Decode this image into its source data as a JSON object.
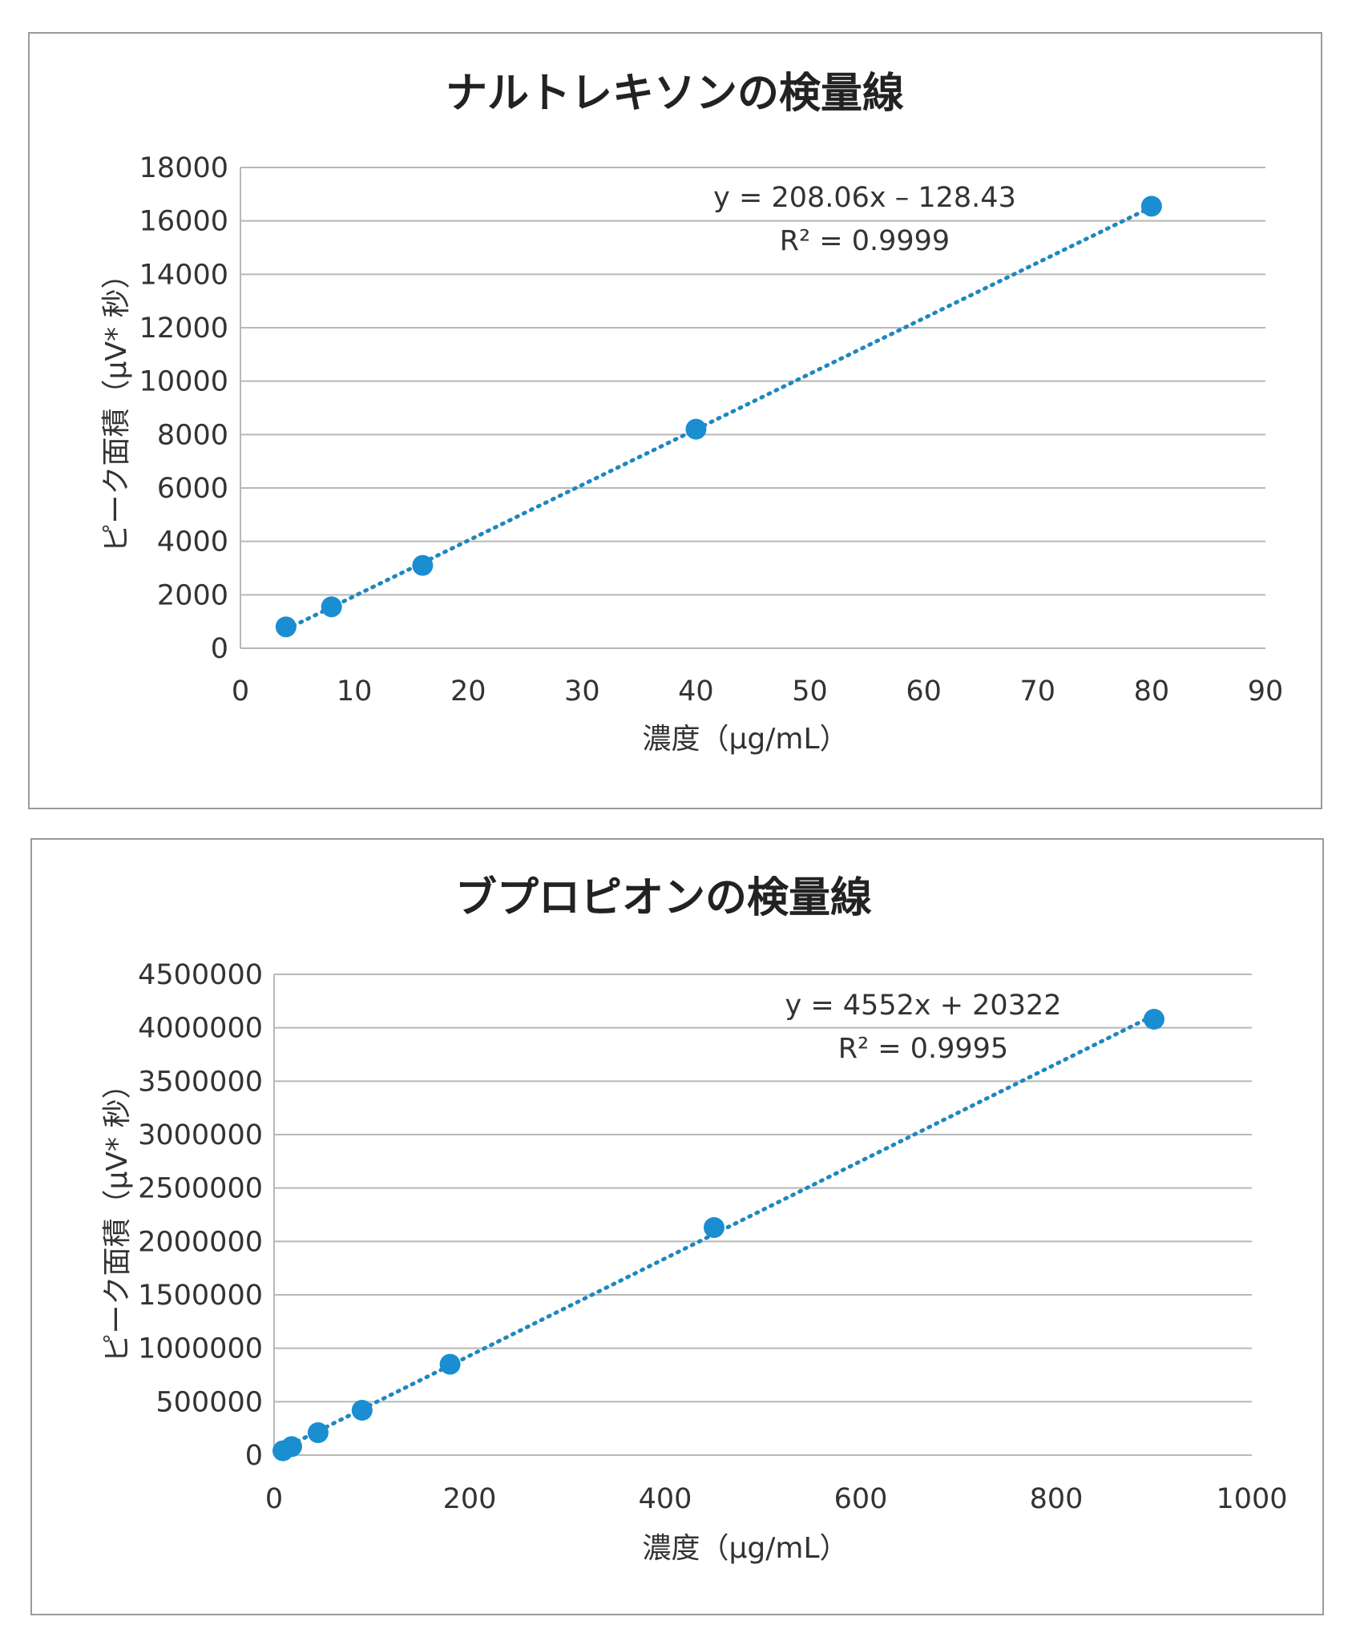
{
  "chart_data": [
    {
      "type": "scatter",
      "title": "ナルトレキソンの検量線",
      "xlabel": "濃度（μg/mL）",
      "ylabel": "ピーク面積（μV* 秒）",
      "xlim": [
        0,
        90
      ],
      "ylim": [
        0,
        18000
      ],
      "x_ticks": [
        "0",
        "10",
        "20",
        "30",
        "40",
        "50",
        "60",
        "70",
        "80",
        "90"
      ],
      "y_ticks": [
        "0",
        "2000",
        "4000",
        "6000",
        "8000",
        "10000",
        "12000",
        "14000",
        "16000",
        "18000"
      ],
      "grid": true,
      "x": [
        4,
        8,
        16,
        40,
        80
      ],
      "y": [
        800,
        1550,
        3100,
        8200,
        16550
      ],
      "trendline": {
        "slope": 208.06,
        "intercept": -128.43,
        "x_range": [
          4,
          80
        ]
      },
      "equation": "y = 208.06x – 128.43",
      "r_squared": "R² = 0.9999",
      "color": "#1a8ed1"
    },
    {
      "type": "scatter",
      "title": "ブプロピオンの検量線",
      "xlabel": "濃度（μg/mL）",
      "ylabel": "ピーク面積（μV* 秒）",
      "xlim": [
        0,
        1000
      ],
      "ylim": [
        0,
        4500000
      ],
      "x_ticks": [
        "0",
        "200",
        "400",
        "600",
        "800",
        "1000"
      ],
      "y_ticks": [
        "0",
        "500000",
        "1000000",
        "1500000",
        "2000000",
        "2500000",
        "3000000",
        "3500000",
        "4000000",
        "4500000"
      ],
      "grid": true,
      "x": [
        9,
        18,
        45,
        90,
        180,
        450,
        900
      ],
      "y": [
        40000,
        80000,
        210000,
        420000,
        850000,
        2130000,
        4080000
      ],
      "trendline": {
        "slope": 4552,
        "intercept": 20322,
        "x_range": [
          9,
          900
        ]
      },
      "equation": "y = 4552x + 20322",
      "r_squared": "R² = 0.9995",
      "color": "#1a8ed1"
    }
  ]
}
